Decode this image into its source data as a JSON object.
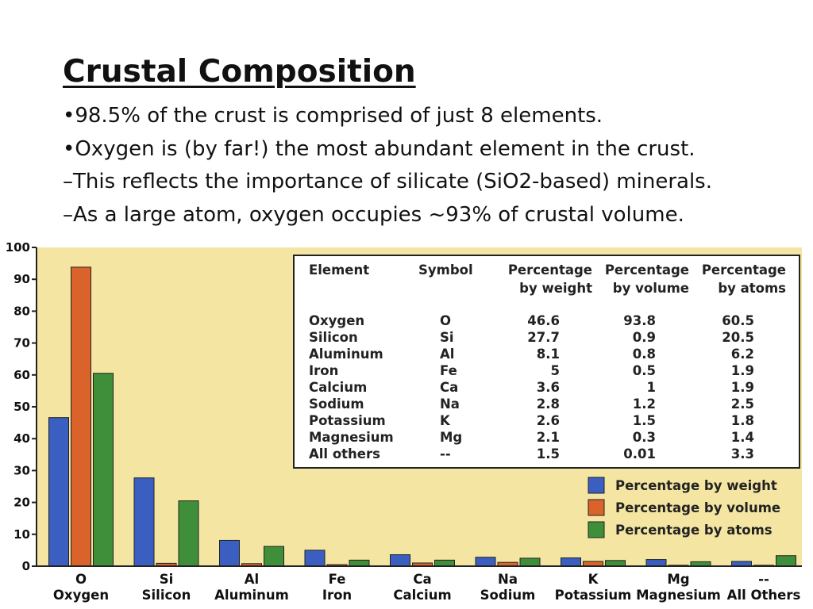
{
  "slide": {
    "title": "Crustal Composition",
    "bullets": [
      "•98.5% of the crust is comprised of just 8 elements.",
      "•Oxygen is (by far!) the most abundant element in the crust.",
      "–This reflects the importance of silicate (SiO2-based) minerals.",
      "–As a large atom, oxygen occupies ~93% of crustal volume."
    ]
  },
  "chart_data": {
    "type": "bar",
    "categories": [
      "O",
      "Si",
      "Al",
      "Fe",
      "Ca",
      "Na",
      "K",
      "Mg",
      "--"
    ],
    "category_names": [
      "Oxygen",
      "Silicon",
      "Aluminum",
      "Iron",
      "Calcium",
      "Sodium",
      "Potassium",
      "Magnesium",
      "All Others"
    ],
    "series": [
      {
        "name": "Percentage by weight",
        "color": "#3a5fc0",
        "values": [
          46.6,
          27.7,
          8.1,
          5,
          3.6,
          2.8,
          2.6,
          2.1,
          1.5
        ]
      },
      {
        "name": "Percentage by volume",
        "color": "#d9632a",
        "values": [
          93.8,
          0.9,
          0.8,
          0.5,
          1,
          1.2,
          1.5,
          0.3,
          0.01
        ]
      },
      {
        "name": "Percentage by atoms",
        "color": "#3f8f3a",
        "values": [
          60.5,
          20.5,
          6.2,
          1.9,
          1.9,
          2.5,
          1.8,
          1.4,
          3.3
        ]
      }
    ],
    "ylim": [
      0,
      100
    ],
    "yticks": [
      0,
      10,
      20,
      30,
      40,
      50,
      60,
      70,
      80,
      90,
      100
    ],
    "grid": false,
    "background_color": "#f4e6a2",
    "legend_position": "bottom-right",
    "table": {
      "headers": [
        [
          "Element"
        ],
        [
          "Symbol"
        ],
        [
          "Percentage",
          "by weight"
        ],
        [
          "Percentage",
          "by volume"
        ],
        [
          "Percentage",
          "by atoms"
        ]
      ],
      "rows": [
        [
          "Oxygen",
          "O",
          "46.6",
          "93.8",
          "60.5"
        ],
        [
          "Silicon",
          "Si",
          "27.7",
          "0.9",
          "20.5"
        ],
        [
          "Aluminum",
          "Al",
          "8.1",
          "0.8",
          "6.2"
        ],
        [
          "Iron",
          "Fe",
          "5",
          "0.5",
          "1.9"
        ],
        [
          "Calcium",
          "Ca",
          "3.6",
          "1",
          "1.9"
        ],
        [
          "Sodium",
          "Na",
          "2.8",
          "1.2",
          "2.5"
        ],
        [
          "Potassium",
          "K",
          "2.6",
          "1.5",
          "1.8"
        ],
        [
          "Magnesium",
          "Mg",
          "2.1",
          "0.3",
          "1.4"
        ],
        [
          "All others",
          "--",
          "1.5",
          "0.01",
          "3.3"
        ]
      ]
    }
  }
}
